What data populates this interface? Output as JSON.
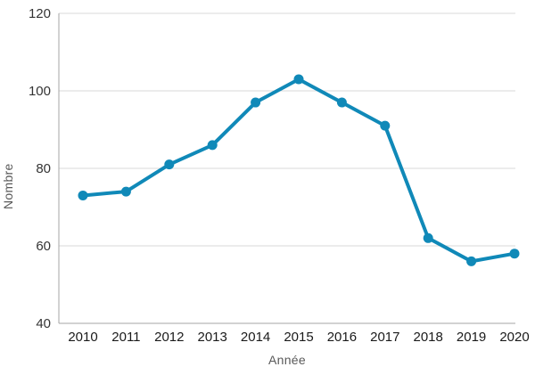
{
  "chart_data": {
    "type": "line",
    "title": "",
    "xlabel": "Année",
    "ylabel": "Nombre",
    "categories": [
      "2010",
      "2011",
      "2012",
      "2013",
      "2014",
      "2015",
      "2016",
      "2017",
      "2018",
      "2019",
      "2020"
    ],
    "values": [
      73,
      74,
      81,
      86,
      97,
      103,
      97,
      91,
      62,
      56,
      58
    ],
    "ylim": [
      40,
      120
    ],
    "yticks": [
      40,
      60,
      80,
      100,
      120
    ],
    "grid": "horizontal",
    "legend": "none",
    "line_color": "#1089b8",
    "grid_color": "#d9d9d9",
    "axis_color": "#a6a6a6",
    "tick_label_color": "#333333",
    "axis_title_color": "#595959",
    "marker": "circle"
  }
}
